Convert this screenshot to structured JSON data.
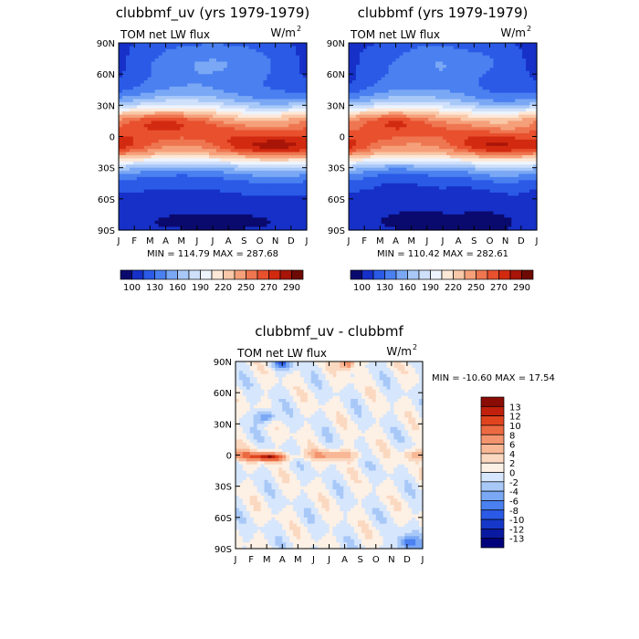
{
  "chart_data": [
    {
      "type": "heatmap",
      "title": "clubbmf_uv (yrs 1979-1979)",
      "subtitle": "TOM net LW flux",
      "units": "W/m",
      "units_exp": "2",
      "x_ticks": [
        "J",
        "F",
        "M",
        "A",
        "M",
        "J",
        "J",
        "A",
        "S",
        "O",
        "N",
        "D",
        "J"
      ],
      "y_ticks": [
        "90N",
        "60N",
        "30N",
        "0",
        "30S",
        "60S",
        "90S"
      ],
      "stats": "MIN = 114.79  MAX = 287.68",
      "colorbar_labels": [
        "100",
        "130",
        "160",
        "190",
        "220",
        "250",
        "270",
        "290"
      ],
      "colorbar_levels": [
        100,
        115,
        130,
        145,
        160,
        175,
        190,
        205,
        220,
        235,
        250,
        260,
        270,
        280,
        290
      ],
      "colors": [
        "#0a0a6e",
        "#1630c8",
        "#2a5ae6",
        "#4a80f0",
        "#7aa8f4",
        "#a8c8f8",
        "#cfe0fb",
        "#eef4fe",
        "#fde8d8",
        "#f9c8a8",
        "#f5a07a",
        "#ee7650",
        "#e8502e",
        "#d22a10",
        "#a81408",
        "#6e0a04"
      ]
    },
    {
      "type": "heatmap",
      "title": "clubbmf (yrs 1979-1979)",
      "subtitle": "TOM net LW flux",
      "units": "W/m",
      "units_exp": "2",
      "x_ticks": [
        "J",
        "F",
        "M",
        "A",
        "M",
        "J",
        "J",
        "A",
        "S",
        "O",
        "N",
        "D",
        "J"
      ],
      "y_ticks": [
        "90N",
        "60N",
        "30N",
        "0",
        "30S",
        "60S",
        "90S"
      ],
      "stats": "MIN = 110.42  MAX = 282.61",
      "colorbar_labels": [
        "100",
        "130",
        "160",
        "190",
        "220",
        "250",
        "270",
        "290"
      ],
      "colorbar_levels": [
        100,
        115,
        130,
        145,
        160,
        175,
        190,
        205,
        220,
        235,
        250,
        260,
        270,
        280,
        290
      ],
      "colors": [
        "#0a0a6e",
        "#1630c8",
        "#2a5ae6",
        "#4a80f0",
        "#7aa8f4",
        "#a8c8f8",
        "#cfe0fb",
        "#eef4fe",
        "#fde8d8",
        "#f9c8a8",
        "#f5a07a",
        "#ee7650",
        "#e8502e",
        "#d22a10",
        "#a81408",
        "#6e0a04"
      ]
    },
    {
      "type": "heatmap",
      "title": "clubbmf_uv - clubbmf",
      "subtitle": "TOM net LW flux",
      "units": "W/m",
      "units_exp": "2",
      "x_ticks": [
        "J",
        "F",
        "M",
        "A",
        "M",
        "J",
        "J",
        "A",
        "S",
        "O",
        "N",
        "D",
        "J"
      ],
      "y_ticks": [
        "90N",
        "60N",
        "30N",
        "0",
        "30S",
        "60S",
        "90S"
      ],
      "stats": "MIN = -10.60 MAX =  17.54",
      "colorbar_labels": [
        "13",
        "12",
        "10",
        "8",
        "6",
        "4",
        "2",
        "0",
        "-2",
        "-4",
        "-6",
        "-8",
        "-10",
        "-12",
        "-13"
      ],
      "colorbar_levels": [
        -13,
        -12,
        -10,
        -8,
        -6,
        -4,
        -2,
        0,
        2,
        4,
        6,
        8,
        10,
        12,
        13
      ],
      "colors": [
        "#00007a",
        "#0a1aa0",
        "#1638c8",
        "#2a5ae6",
        "#4a80f0",
        "#7aa8f4",
        "#a8c8f8",
        "#d6e6fc",
        "#fdf0e4",
        "#fbd8c0",
        "#f8b896",
        "#f4946e",
        "#ec6a42",
        "#e0441e",
        "#c0200c",
        "#8a0c04"
      ]
    }
  ]
}
